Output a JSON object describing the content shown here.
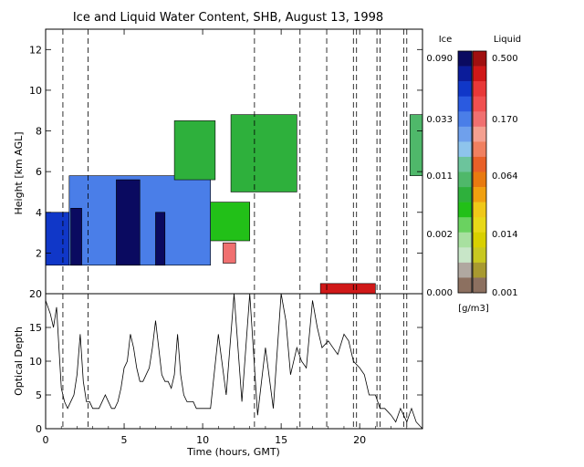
{
  "chart_data": [
    {
      "type": "heatmap",
      "title": "Ice and Liquid Water Content, SHB, August 13, 1998",
      "xlabel": "",
      "ylabel": "Height [km AGL]",
      "xlim": [
        0,
        24
      ],
      "ylim": [
        0,
        13
      ],
      "x_ticks": [
        0,
        5,
        10,
        15,
        20
      ],
      "y_ticks": [
        2,
        4,
        6,
        8,
        10,
        12
      ],
      "dashed_time_markers": [
        1.1,
        2.7,
        13.3,
        16.2,
        17.9,
        19.6,
        19.8,
        21.1,
        21.3,
        22.8,
        23.0
      ],
      "scale_labels": {
        "ice": "Ice",
        "liquid": "Liquid",
        "units": "[g/m3]"
      },
      "ice_ticks": [
        "0.090",
        "0.033",
        "0.011",
        "0.002",
        "0.000"
      ],
      "liquid_ticks": [
        "0.500",
        "0.170",
        "0.064",
        "0.014",
        "0.001"
      ],
      "ice_colors": [
        "#0a0a60",
        "#0b1c9a",
        "#1037c8",
        "#2a5ae0",
        "#4a7ee8",
        "#6fa0ec",
        "#8ec4ec",
        "#6cc49c",
        "#4fb86a",
        "#2eb03c",
        "#22c018",
        "#6ad260",
        "#a8e0a0",
        "#c8e6c8",
        "#b0a8a0",
        "#8c7060"
      ],
      "liquid_colors": [
        "#a01010",
        "#d01818",
        "#e83838",
        "#f05050",
        "#f07070",
        "#f4a090",
        "#f08060",
        "#e86028",
        "#e87a10",
        "#f0a010",
        "#f0c818",
        "#e8d818",
        "#d8d000",
        "#c8c820",
        "#a89a30",
        "#8c7060"
      ],
      "regions": [
        {
          "phase": "ice",
          "level": 0.05,
          "t0": 0.0,
          "t1": 1.5,
          "h0": 1.4,
          "h1": 4.0
        },
        {
          "phase": "ice",
          "level": 0.02,
          "t0": 1.5,
          "t1": 10.5,
          "h0": 1.4,
          "h1": 5.8
        },
        {
          "phase": "ice",
          "level": 0.09,
          "t0": 1.6,
          "t1": 2.3,
          "h0": 1.4,
          "h1": 4.2
        },
        {
          "phase": "ice",
          "level": 0.09,
          "t0": 4.5,
          "t1": 6.0,
          "h0": 1.4,
          "h1": 5.6
        },
        {
          "phase": "ice",
          "level": 0.09,
          "t0": 7.0,
          "t1": 7.6,
          "h0": 1.4,
          "h1": 4.0
        },
        {
          "phase": "ice",
          "level": 0.003,
          "t0": 10.5,
          "t1": 13.0,
          "h0": 2.6,
          "h1": 4.5
        },
        {
          "phase": "ice",
          "level": 0.004,
          "t0": 11.8,
          "t1": 16.0,
          "h0": 5.0,
          "h1": 8.8
        },
        {
          "phase": "ice",
          "level": 0.004,
          "t0": 8.2,
          "t1": 10.8,
          "h0": 5.6,
          "h1": 8.5
        },
        {
          "phase": "ice",
          "level": 0.005,
          "t0": 23.2,
          "t1": 24.0,
          "h0": 5.8,
          "h1": 8.8
        },
        {
          "phase": "liquid",
          "level": 0.1,
          "t0": 11.3,
          "t1": 12.1,
          "h0": 1.5,
          "h1": 2.5
        },
        {
          "phase": "liquid",
          "level": 0.3,
          "t0": 17.5,
          "t1": 21.0,
          "h0": 0.0,
          "h1": 0.5
        }
      ],
      "series": []
    },
    {
      "type": "line",
      "title": "",
      "xlabel": "Time (hours, GMT)",
      "ylabel": "Optical Depth",
      "xlim": [
        0,
        24
      ],
      "ylim": [
        0,
        20
      ],
      "x_ticks": [
        0,
        5,
        10,
        15,
        20
      ],
      "y_ticks": [
        0,
        5,
        10,
        15,
        20
      ],
      "series": [
        {
          "x": [
            0.0,
            0.3,
            0.5,
            0.7,
            1.0,
            1.2,
            1.4,
            1.6,
            1.8,
            2.0,
            2.2,
            2.4,
            2.6,
            2.8,
            3.0,
            3.2,
            3.4,
            3.6,
            3.8,
            4.0,
            4.2,
            4.4,
            4.6,
            4.8,
            5.0,
            5.2,
            5.4,
            5.6,
            5.8,
            6.0,
            6.2,
            6.4,
            6.6,
            6.8,
            7.0,
            7.2,
            7.4,
            7.6,
            7.8,
            8.0,
            8.2,
            8.4,
            8.6,
            8.8,
            9.0,
            9.2,
            9.4,
            9.6,
            9.8,
            10.0,
            10.5,
            11.0,
            11.5,
            12.0,
            12.5,
            13.0,
            13.5,
            14.0,
            14.5,
            15.0,
            15.3,
            15.6,
            16.0,
            16.3,
            16.6,
            17.0,
            17.3,
            17.6,
            18.0,
            18.3,
            18.6,
            19.0,
            19.3,
            19.6,
            20.0,
            20.3,
            20.6,
            21.0,
            21.3,
            21.6,
            22.0,
            22.3,
            22.6,
            23.0,
            23.3,
            23.6,
            24.0
          ],
          "values": [
            19,
            17,
            15,
            18,
            6,
            4,
            3,
            4,
            5,
            8,
            14,
            7,
            4,
            4,
            3,
            3,
            3,
            4,
            5,
            4,
            3,
            3,
            4,
            6,
            9,
            10,
            14,
            12,
            9,
            7,
            7,
            8,
            9,
            12,
            16,
            12,
            8,
            7,
            7,
            6,
            8,
            14,
            8,
            5,
            4,
            4,
            4,
            3,
            3,
            3,
            3,
            14,
            5,
            20,
            4,
            20,
            2,
            12,
            3,
            20,
            16,
            8,
            12,
            10,
            9,
            19,
            15,
            12,
            13,
            12,
            11,
            14,
            13,
            10,
            9,
            8,
            5,
            5,
            3,
            3,
            2,
            1,
            3,
            1,
            3,
            1,
            0
          ]
        }
      ]
    }
  ]
}
